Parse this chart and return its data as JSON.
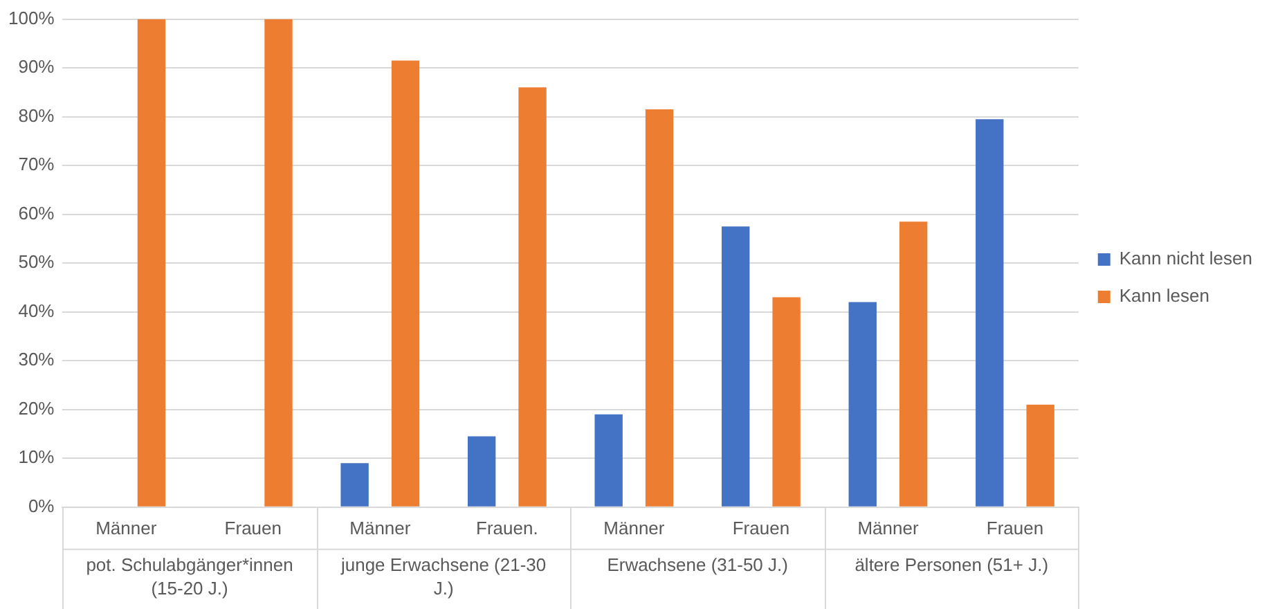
{
  "chart_data": {
    "type": "bar",
    "categories": [
      "Männer",
      "Frauen",
      "Männer",
      "Frauen.",
      "Männer",
      "Frauen",
      "Männer",
      "Frauen"
    ],
    "series": [
      {
        "name": "Kann nicht lesen",
        "color": "#4472c4",
        "values": [
          0,
          0,
          9,
          14.5,
          19,
          57.5,
          42,
          79.5
        ]
      },
      {
        "name": "Kann lesen",
        "color": "#ed7d31",
        "values": [
          100,
          100,
          91.5,
          86,
          81.5,
          43,
          58.5,
          21
        ]
      }
    ],
    "annotations": [
      "pot. Schulabgänger*innen (15-20 J.)",
      "junge Erwachsene (21-30 J.)",
      "Erwachsene (31-50 J.)",
      "ältere Personen (51+ J.)"
    ],
    "ylim": [
      0,
      100
    ],
    "yticks": [
      {
        "value": 0,
        "label": "0%"
      },
      {
        "value": 10,
        "label": "10%"
      },
      {
        "value": 20,
        "label": "20%"
      },
      {
        "value": 30,
        "label": "30%"
      },
      {
        "value": 40,
        "label": "40%"
      },
      {
        "value": 50,
        "label": "50%"
      },
      {
        "value": 60,
        "label": "60%"
      },
      {
        "value": 70,
        "label": "70%"
      },
      {
        "value": 80,
        "label": "80%"
      },
      {
        "value": 90,
        "label": "90%"
      },
      {
        "value": 100,
        "label": "100%"
      }
    ],
    "grid": "y",
    "legend": "right"
  }
}
